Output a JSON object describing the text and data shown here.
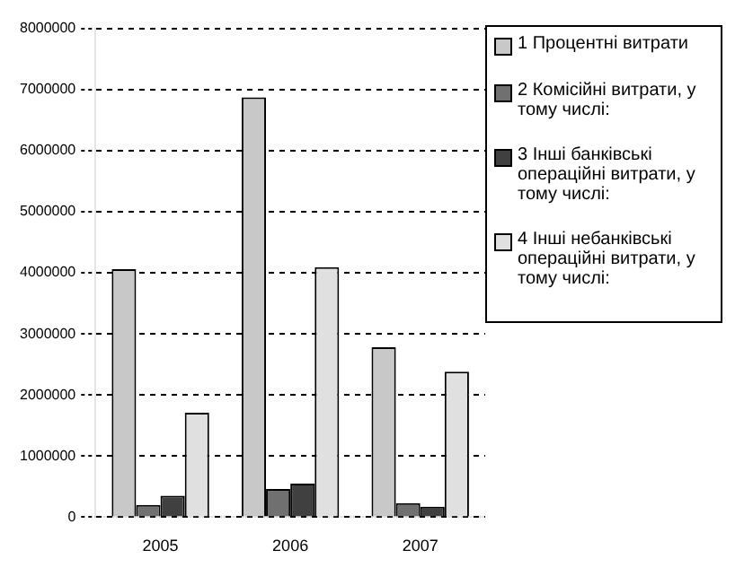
{
  "chart_data": {
    "type": "bar",
    "categories": [
      "2005",
      "2006",
      "2007"
    ],
    "series": [
      {
        "name": "1 Процентні витрати",
        "color": "#c8c8c8",
        "values": [
          4060000,
          6870000,
          2780000
        ]
      },
      {
        "name": "2 Комісійні витрати, у тому числі:",
        "color": "#707070",
        "values": [
          200000,
          460000,
          230000
        ]
      },
      {
        "name": "3 Інші банківські операційні витрати, у тому числі:",
        "color": "#404040",
        "values": [
          350000,
          550000,
          170000
        ]
      },
      {
        "name": "4 Інші небанківські операційні витрати, у тому числі:",
        "color": "#e0e0e0",
        "values": [
          1710000,
          4090000,
          2380000
        ]
      }
    ],
    "ylim": [
      0,
      8000000
    ],
    "yticks": [
      0,
      1000000,
      2000000,
      3000000,
      4000000,
      5000000,
      6000000,
      7000000,
      8000000
    ],
    "grid": "y",
    "legend": "right"
  }
}
